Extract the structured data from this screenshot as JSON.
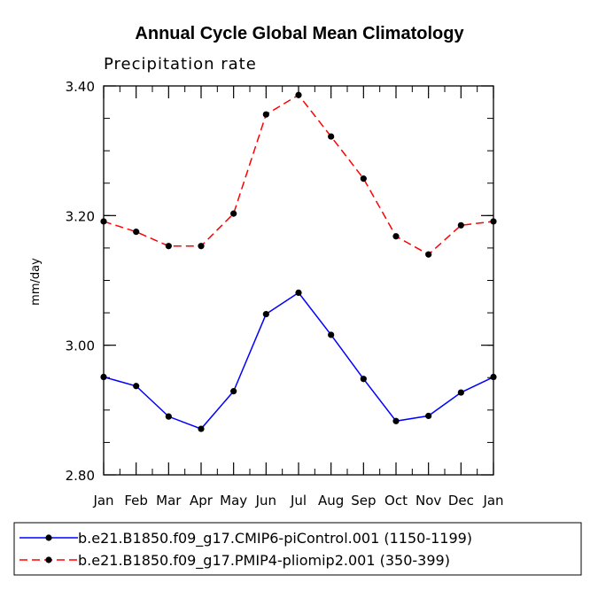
{
  "chart_data": {
    "type": "line",
    "title": "Annual Cycle Global Mean Climatology",
    "subtitle": "Precipitation rate",
    "xlabel": "",
    "ylabel": "mm/day",
    "categories": [
      "Jan",
      "Feb",
      "Mar",
      "Apr",
      "May",
      "Jun",
      "Jul",
      "Aug",
      "Sep",
      "Oct",
      "Nov",
      "Dec",
      "Jan"
    ],
    "ylim": [
      2.8,
      3.4
    ],
    "yticks": [
      "2.80",
      "3.00",
      "3.20",
      "3.40"
    ],
    "ytick_values": [
      2.8,
      3.0,
      3.2,
      3.4
    ],
    "minor_tick_step": 0.05,
    "series": [
      {
        "name": "b.e21.B1850.f09_g17.CMIP6-piControl.001 (1150-1199)",
        "color": "#0000ff",
        "dash": "solid",
        "values": [
          2.951,
          2.937,
          2.89,
          2.871,
          2.929,
          3.048,
          3.081,
          3.016,
          2.948,
          2.883,
          2.891,
          2.927,
          2.951
        ]
      },
      {
        "name": "b.e21.B1850.f09_g17.PMIP4-pliomip2.001 (350-399)",
        "color": "#ff0000",
        "dash": "dashed",
        "values": [
          3.191,
          3.175,
          3.153,
          3.153,
          3.203,
          3.356,
          3.386,
          3.322,
          3.257,
          3.168,
          3.14,
          3.185,
          3.191
        ]
      }
    ]
  }
}
